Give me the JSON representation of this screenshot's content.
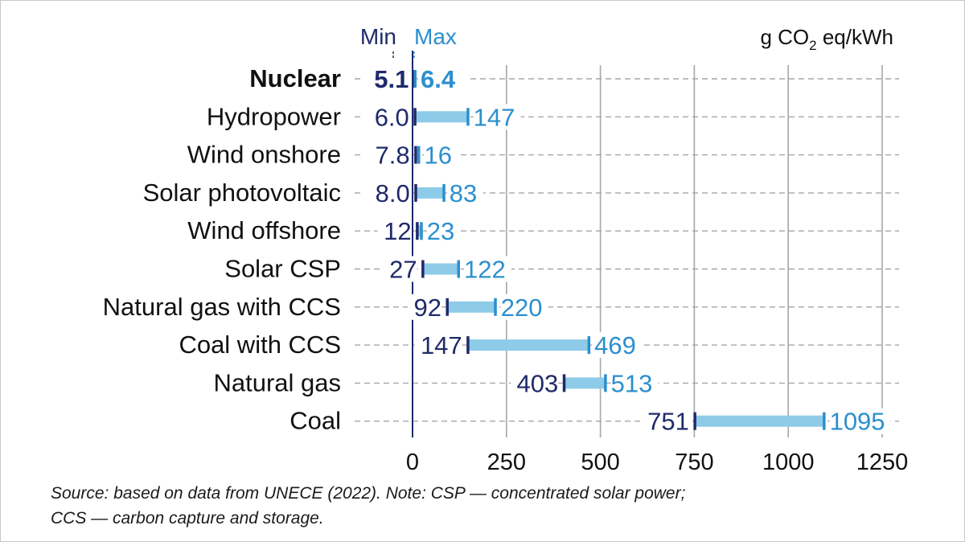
{
  "chart_data": {
    "type": "bar",
    "subtype": "range",
    "unit_label": "g CO",
    "unit_sub": "2",
    "unit_suffix": " eq/kWh",
    "min_label": "Min",
    "max_label": "Max",
    "categories": [
      "Nuclear",
      "Hydropower",
      "Wind onshore",
      "Solar photovoltaic",
      "Wind offshore",
      "Solar CSP",
      "Natural gas with CCS",
      "Coal with CCS",
      "Natural gas",
      "Coal"
    ],
    "series": [
      {
        "name": "Min",
        "values": [
          5.1,
          6.0,
          7.8,
          8.0,
          12,
          27,
          92,
          147,
          403,
          751
        ]
      },
      {
        "name": "Max",
        "values": [
          6.4,
          147,
          16,
          83,
          23,
          122,
          220,
          469,
          513,
          1095
        ]
      }
    ],
    "min_labels": [
      "5.1",
      "6.0",
      "7.8",
      "8.0",
      "12",
      "27",
      "92",
      "147",
      "403",
      "751"
    ],
    "max_labels": [
      "6.4",
      "147",
      "16",
      "83",
      "23",
      "122",
      "220",
      "469",
      "513",
      "1095"
    ],
    "highlight_category": "Nuclear",
    "xticks": [
      0,
      250,
      500,
      750,
      1000,
      1250
    ],
    "xlim": [
      0,
      1250
    ],
    "grid": true,
    "colors": {
      "min": "#1f2a6b",
      "max": "#2b8fce",
      "range": "#8ecbe8",
      "grid": "#a6a6a6",
      "text": "#111111"
    }
  },
  "note": {
    "line1": "Source: based on data from UNECE (2022). Note: CSP — concentrated solar power;",
    "line2": "CCS — carbon capture and storage."
  }
}
